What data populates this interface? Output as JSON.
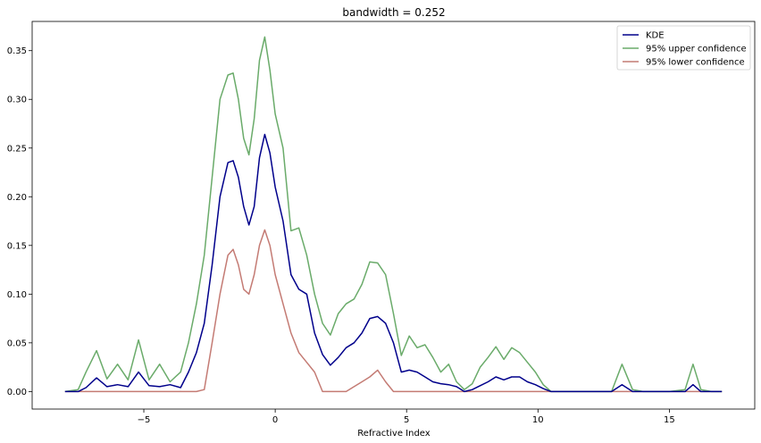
{
  "chart_data": {
    "type": "line",
    "title": "bandwidth = 0.252",
    "xlabel": "Refractive Index",
    "ylabel": "",
    "xlim": [
      -9.25,
      18.25
    ],
    "ylim": [
      -0.018,
      0.38
    ],
    "xticks": [
      -5,
      0,
      5,
      10,
      15
    ],
    "xtick_labels": [
      "−5",
      "0",
      "5",
      "10",
      "15"
    ],
    "yticks": [
      0.0,
      0.05,
      0.1,
      0.15,
      0.2,
      0.25,
      0.3,
      0.35
    ],
    "ytick_labels": [
      "0.00",
      "0.05",
      "0.10",
      "0.15",
      "0.20",
      "0.25",
      "0.30",
      "0.35"
    ],
    "grid": false,
    "legend_position": "top-right",
    "series": [
      {
        "name": "KDE",
        "color": "#00008b",
        "x": [
          -8.0,
          -7.5,
          -7.2,
          -6.8,
          -6.4,
          -6.0,
          -5.6,
          -5.2,
          -4.8,
          -4.4,
          -4.0,
          -3.6,
          -3.3,
          -3.0,
          -2.7,
          -2.4,
          -2.1,
          -1.8,
          -1.6,
          -1.4,
          -1.2,
          -1.0,
          -0.8,
          -0.6,
          -0.4,
          -0.2,
          0.0,
          0.3,
          0.6,
          0.9,
          1.2,
          1.5,
          1.8,
          2.1,
          2.4,
          2.7,
          3.0,
          3.3,
          3.6,
          3.9,
          4.2,
          4.5,
          4.8,
          5.1,
          5.4,
          5.7,
          6.0,
          6.3,
          6.6,
          6.9,
          7.2,
          7.5,
          7.8,
          8.1,
          8.4,
          8.7,
          9.0,
          9.3,
          9.6,
          9.9,
          10.2,
          10.5,
          11.0,
          12.0,
          12.8,
          13.2,
          13.6,
          14.0,
          15.0,
          15.6,
          15.9,
          16.2,
          16.6,
          17.0
        ],
        "y": [
          0.0,
          0.0,
          0.004,
          0.014,
          0.005,
          0.007,
          0.005,
          0.02,
          0.006,
          0.005,
          0.007,
          0.004,
          0.02,
          0.04,
          0.07,
          0.13,
          0.2,
          0.235,
          0.237,
          0.22,
          0.19,
          0.171,
          0.19,
          0.24,
          0.264,
          0.245,
          0.21,
          0.175,
          0.12,
          0.105,
          0.1,
          0.06,
          0.038,
          0.027,
          0.035,
          0.045,
          0.05,
          0.06,
          0.075,
          0.077,
          0.07,
          0.05,
          0.02,
          0.022,
          0.02,
          0.015,
          0.01,
          0.008,
          0.007,
          0.005,
          0.0,
          0.002,
          0.006,
          0.01,
          0.015,
          0.012,
          0.015,
          0.015,
          0.01,
          0.007,
          0.003,
          0.0,
          0.0,
          0.0,
          0.0,
          0.007,
          0.0,
          0.0,
          0.0,
          0.0,
          0.007,
          0.0,
          0.0,
          0.0
        ]
      },
      {
        "name": "95% upper confidence",
        "color": "#6aab6a",
        "x": [
          -8.0,
          -7.5,
          -7.2,
          -6.8,
          -6.4,
          -6.0,
          -5.6,
          -5.2,
          -4.8,
          -4.4,
          -4.0,
          -3.6,
          -3.3,
          -3.0,
          -2.7,
          -2.4,
          -2.1,
          -1.8,
          -1.6,
          -1.4,
          -1.2,
          -1.0,
          -0.8,
          -0.6,
          -0.4,
          -0.2,
          0.0,
          0.3,
          0.6,
          0.9,
          1.2,
          1.5,
          1.8,
          2.1,
          2.4,
          2.7,
          3.0,
          3.3,
          3.6,
          3.9,
          4.2,
          4.5,
          4.8,
          5.1,
          5.4,
          5.7,
          6.0,
          6.3,
          6.6,
          6.9,
          7.2,
          7.5,
          7.8,
          8.1,
          8.4,
          8.7,
          9.0,
          9.3,
          9.6,
          9.9,
          10.2,
          10.5,
          11.0,
          12.0,
          12.8,
          13.2,
          13.6,
          14.0,
          15.0,
          15.6,
          15.9,
          16.2,
          16.6,
          17.0
        ],
        "y": [
          0.0,
          0.002,
          0.02,
          0.042,
          0.013,
          0.028,
          0.012,
          0.053,
          0.012,
          0.028,
          0.01,
          0.02,
          0.05,
          0.09,
          0.14,
          0.22,
          0.3,
          0.325,
          0.327,
          0.3,
          0.26,
          0.243,
          0.28,
          0.34,
          0.364,
          0.33,
          0.285,
          0.25,
          0.165,
          0.168,
          0.14,
          0.1,
          0.07,
          0.058,
          0.08,
          0.09,
          0.095,
          0.11,
          0.133,
          0.132,
          0.12,
          0.08,
          0.037,
          0.057,
          0.045,
          0.048,
          0.035,
          0.02,
          0.028,
          0.01,
          0.002,
          0.008,
          0.025,
          0.035,
          0.046,
          0.033,
          0.045,
          0.04,
          0.03,
          0.02,
          0.007,
          0.0,
          0.0,
          0.0,
          0.0,
          0.028,
          0.002,
          0.0,
          0.0,
          0.002,
          0.028,
          0.002,
          0.0,
          0.0
        ]
      },
      {
        "name": "95% lower confidence",
        "color": "#c47b74",
        "x": [
          -8.0,
          -7.5,
          -7.0,
          -6.0,
          -5.0,
          -4.0,
          -3.0,
          -2.7,
          -2.4,
          -2.1,
          -1.8,
          -1.6,
          -1.4,
          -1.2,
          -1.0,
          -0.8,
          -0.6,
          -0.4,
          -0.2,
          0.0,
          0.3,
          0.6,
          0.9,
          1.2,
          1.5,
          1.8,
          2.1,
          2.4,
          2.7,
          3.0,
          3.3,
          3.6,
          3.9,
          4.2,
          4.5,
          5.0,
          6.0,
          7.0,
          8.0,
          9.0,
          10.0,
          11.0,
          12.0,
          13.0,
          14.0,
          15.0,
          16.0,
          17.0
        ],
        "y": [
          0.0,
          0.0,
          0.0,
          0.0,
          0.0,
          0.0,
          0.0,
          0.002,
          0.05,
          0.1,
          0.14,
          0.146,
          0.13,
          0.105,
          0.1,
          0.12,
          0.15,
          0.166,
          0.15,
          0.12,
          0.09,
          0.06,
          0.04,
          0.03,
          0.02,
          0.0,
          0.0,
          0.0,
          0.0,
          0.005,
          0.01,
          0.015,
          0.022,
          0.01,
          0.0,
          0.0,
          0.0,
          0.0,
          0.0,
          0.0,
          0.0,
          0.0,
          0.0,
          0.0,
          0.0,
          0.0,
          0.0,
          0.0
        ]
      }
    ]
  }
}
